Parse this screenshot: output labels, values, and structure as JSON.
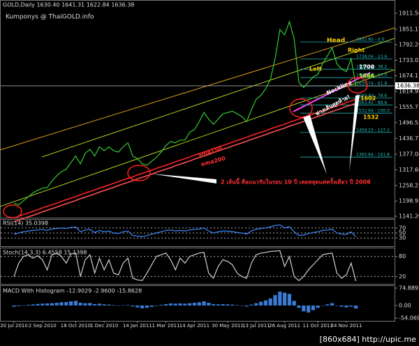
{
  "chart_data": [
    {
      "type": "line",
      "title": "GOLD,Daily  1630.40 1641.31 1622.84 1636.38",
      "subtitle": "Kumponys @ ThaiGOLD.info",
      "categories": [
        "20 Jul 2010",
        null,
        null,
        null,
        null,
        null,
        "2 Sep 2010",
        null,
        null,
        null,
        null,
        null,
        null,
        "18 Oct 2010",
        null,
        null,
        null,
        null,
        null,
        "1 Dec 2010",
        null,
        null,
        null,
        null,
        null,
        null,
        "14 Jan 2011",
        null,
        null,
        null,
        null,
        null,
        "1 Mar 2011",
        null,
        null,
        null,
        null,
        null,
        "14 Apr 2011",
        null,
        null,
        null,
        null,
        null,
        null,
        "30 May 2011",
        null,
        null,
        null,
        null,
        null,
        "13 Jul 2011",
        null,
        null,
        null,
        null,
        null,
        "26 Aug 2011",
        null,
        null,
        null,
        null,
        null,
        null,
        "11 Oct 2011",
        null,
        null,
        null,
        null,
        null,
        "24 Nov 2011",
        null,
        null
      ],
      "series": [
        {
          "color": "#33cc33",
          "values": [
            1190,
            1185,
            1200,
            1215,
            1230,
            1240,
            1248,
            1250,
            1275,
            1295,
            1310,
            1320,
            1345,
            1370,
            1340,
            1380,
            1395,
            1370,
            1405,
            1390,
            1405,
            1390,
            1385,
            1405,
            1420,
            1370,
            1360,
            1340,
            1335,
            1350,
            1365,
            1385,
            1410,
            1425,
            1420,
            1430,
            1430,
            1460,
            1470,
            1500,
            1535,
            1510,
            1490,
            1510,
            1530,
            1535,
            1540,
            1530,
            1520,
            1500,
            1545,
            1585,
            1600,
            1625,
            1660,
            1740,
            1850,
            1830,
            1880,
            1815,
            1650,
            1630,
            1650,
            1670,
            1680,
            1720,
            1750,
            1780,
            1720,
            1700,
            1690,
            1740,
            1636.38
          ]
        },
        {
          "name": "sma150",
          "color": "#ff2020",
          "values": [
            1135,
            1141,
            1148,
            1154,
            1160,
            1166,
            1173,
            1179,
            1185,
            1191,
            1198,
            1204,
            1210,
            1216,
            1223,
            1229,
            1235,
            1241,
            1248,
            1254,
            1260,
            1266,
            1273,
            1279,
            1285,
            1291,
            1298,
            1304,
            1310,
            1316,
            1323,
            1329,
            1335,
            1341,
            1348,
            1354,
            1360,
            1366,
            1373,
            1379,
            1385,
            1391,
            1398,
            1404,
            1410,
            1416,
            1423,
            1429,
            1435,
            1441,
            1448,
            1454,
            1460,
            1466,
            1473,
            1479,
            1485,
            1491,
            1498,
            1504,
            1510,
            1516,
            1523,
            1529,
            1535,
            1541,
            1548,
            1554,
            1560,
            1566,
            1573,
            1579,
            1585
          ]
        },
        {
          "name": "ema200",
          "color": "#ff5050",
          "values": [
            1120,
            1126,
            1133,
            1139,
            1145,
            1151,
            1158,
            1164,
            1170,
            1176,
            1183,
            1189,
            1195,
            1201,
            1208,
            1214,
            1220,
            1226,
            1233,
            1239,
            1245,
            1251,
            1258,
            1264,
            1270,
            1276,
            1283,
            1289,
            1295,
            1301,
            1308,
            1314,
            1320,
            1326,
            1333,
            1339,
            1345,
            1351,
            1358,
            1364,
            1370,
            1376,
            1383,
            1389,
            1395,
            1401,
            1408,
            1414,
            1420,
            1426,
            1433,
            1439,
            1445,
            1451,
            1458,
            1464,
            1470,
            1476,
            1483,
            1489,
            1495,
            1501,
            1508,
            1514,
            1520,
            1526,
            1533,
            1539,
            1545,
            1551,
            1558,
            1564,
            1570
          ]
        }
      ],
      "current_price": 1636.38,
      "ylim": [
        1136,
        1962
      ],
      "yticks": [
        1911.56,
        1851.15,
        1792.26,
        1733.02,
        1674.11,
        1614.94,
        1555.71,
        1496.53,
        1436.77,
        1377.08,
        {
          "value": 1317.6,
          "label": "1317.60"
        },
        1258.25,
        1198.93,
        {
          "value": 1141.2,
          "label": "1141.20"
        }
      ],
      "fib_levels": [
        {
          "value": 1802.8,
          "label": "1802.80 - 0.0"
        },
        {
          "value": 1738.04,
          "label": "1738.04 - 23.6"
        },
        {
          "value": 1699.44,
          "label": "1699.44 - 38.2"
        },
        {
          "value": 1667.59,
          "label": "1667.59 - 50.0"
        },
        {
          "value": 1635.74,
          "label": "1635.74 - 61.8"
        },
        {
          "value": 1590.4,
          "label": "1590.40 - 78.6"
        },
        {
          "value": 1563.45,
          "label": "1563.45 - 88.6"
        },
        {
          "value": 1532.64,
          "label": "1532.64 - 100.0"
        },
        {
          "value": 1459.23,
          "label": "1459.23 - 127.2"
        },
        {
          "value": 1365.84,
          "label": "1365.84 - 161.8"
        }
      ],
      "annotations": [
        "Head",
        "Right",
        "Left",
        "Neckline",
        "1700",
        "1666",
        "1602",
        "1532",
        "sma150",
        "ema200",
        "2 เส้นนี้ คือแนวรับในรอบ 10 ปี เคยหลุดแค่ครั้งเดียว ปี 2008",
        "ฟางเส้นสุดท้าย!"
      ]
    },
    {
      "type": "line",
      "title": "RSI(14) 35.0398",
      "grid": true,
      "series": [
        {
          "color": "#3d8bff",
          "values": [
            45,
            50,
            55,
            58,
            60,
            62,
            64,
            60,
            66,
            68,
            70,
            68,
            72,
            74,
            55,
            62,
            64,
            52,
            60,
            55,
            58,
            50,
            48,
            55,
            58,
            40,
            38,
            35,
            40,
            45,
            50,
            55,
            60,
            62,
            58,
            60,
            58,
            62,
            64,
            66,
            70,
            58,
            50,
            55,
            58,
            57,
            56,
            52,
            50,
            46,
            58,
            65,
            68,
            70,
            74,
            80,
            82,
            70,
            75,
            55,
            40,
            42,
            48,
            52,
            55,
            60,
            62,
            65,
            50,
            46,
            44,
            55,
            35.04
          ]
        }
      ],
      "ylim": [
        0,
        100
      ],
      "yticks": [
        70,
        50,
        30
      ]
    },
    {
      "type": "line",
      "title": "Stoch(14,3,3) 6.4558 15.1398",
      "grid": true,
      "series": [
        {
          "color": "#d0d0d0",
          "values": [
            20,
            60,
            80,
            85,
            75,
            82,
            70,
            40,
            85,
            90,
            80,
            60,
            88,
            90,
            20,
            70,
            85,
            30,
            75,
            40,
            70,
            30,
            25,
            60,
            75,
            15,
            10,
            8,
            30,
            55,
            80,
            85,
            90,
            70,
            40,
            75,
            60,
            80,
            85,
            90,
            92,
            30,
            15,
            50,
            70,
            65,
            55,
            30,
            20,
            15,
            60,
            85,
            90,
            92,
            95,
            96,
            97,
            50,
            80,
            20,
            8,
            20,
            40,
            55,
            70,
            85,
            88,
            90,
            30,
            15,
            25,
            60,
            6.46
          ]
        }
      ],
      "ylim": [
        0,
        100
      ],
      "yticks": [
        80,
        20
      ]
    },
    {
      "type": "bar",
      "title": "MACD With Histogram -12.9029 -2.9600 -15.8628",
      "series": [
        {
          "color": "#3a7bd5",
          "values": [
            -5,
            -3,
            0,
            3,
            5,
            7,
            8,
            9,
            10,
            12,
            14,
            15,
            18,
            20,
            12,
            10,
            11,
            6,
            8,
            5,
            4,
            2,
            0,
            1,
            2,
            -4,
            -8,
            -12,
            -10,
            -6,
            -2,
            3,
            6,
            9,
            8,
            9,
            8,
            10,
            12,
            14,
            18,
            12,
            6,
            5,
            6,
            5,
            4,
            2,
            -1,
            -4,
            4,
            10,
            16,
            22,
            30,
            45,
            60,
            55,
            50,
            20,
            -10,
            -25,
            -30,
            -20,
            -10,
            0,
            5,
            10,
            0,
            -5,
            -8,
            -5,
            -12.9
          ]
        }
      ],
      "ylim": [
        -54.0693,
        74.8893
      ],
      "yticks": [
        74.8893,
        {
          "value": 0,
          "label": "0.00"
        },
        -54.0693
      ]
    }
  ],
  "footer": "[860x684] http://upic.me"
}
